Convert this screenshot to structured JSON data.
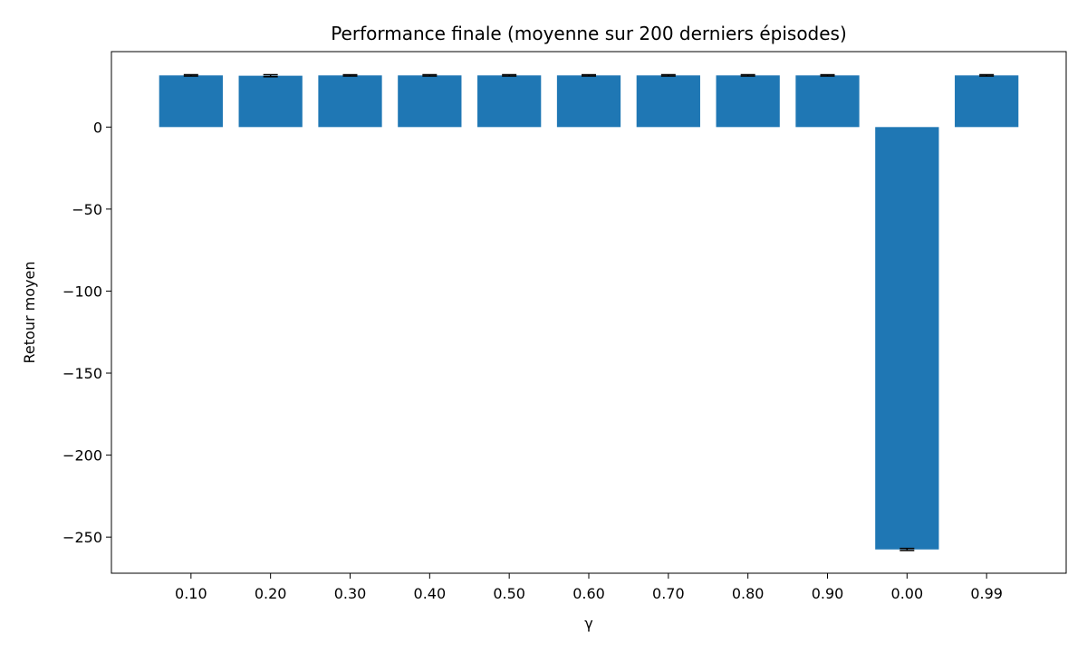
{
  "chart_data": {
    "type": "bar",
    "title": "Performance finale (moyenne sur 200 derniers épisodes)",
    "xlabel": "γ",
    "ylabel": "Retour moyen",
    "categories": [
      "0.10",
      "0.20",
      "0.30",
      "0.40",
      "0.50",
      "0.60",
      "0.70",
      "0.80",
      "0.90",
      "0.00",
      "0.99"
    ],
    "values": [
      31.5,
      31.3,
      31.5,
      31.5,
      31.5,
      31.5,
      31.5,
      31.5,
      31.5,
      -257.5,
      31.5
    ],
    "errors": [
      0.4,
      0.6,
      0.4,
      0.4,
      0.4,
      0.4,
      0.4,
      0.4,
      0.4,
      0.6,
      0.4
    ],
    "ylim": [
      -272,
      46
    ],
    "yticks": [
      0,
      -50,
      -100,
      -150,
      -200,
      -250
    ],
    "ytick_labels": [
      "0",
      "−50",
      "−100",
      "−150",
      "−200",
      "−250"
    ],
    "grid": false,
    "bar_color": "#1f77b4",
    "error_color": "#000000"
  }
}
